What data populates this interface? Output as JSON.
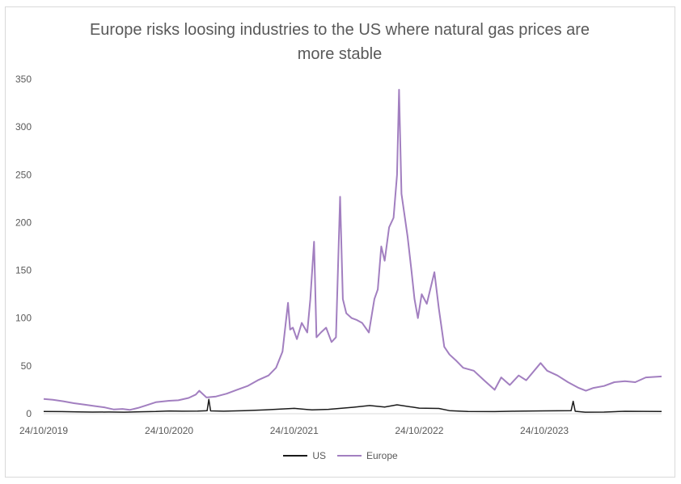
{
  "chart_data": {
    "type": "line",
    "title_line1": "Europe risks loosing industries to the US where natural gas prices are",
    "title_line2": "more stable",
    "x_tick_labels": [
      "24/10/2019",
      "24/10/2020",
      "24/10/2021",
      "24/10/2022",
      "24/10/2023"
    ],
    "x_ticks": [
      "2019-10-24",
      "2020-10-24",
      "2021-10-24",
      "2022-10-24",
      "2023-10-24"
    ],
    "xlim": [
      "2019-10-24",
      "2024-09-30"
    ],
    "ylim": [
      0,
      350
    ],
    "y_ticks": [
      0,
      50,
      100,
      150,
      200,
      250,
      300,
      350
    ],
    "grid": false,
    "legend_position": "bottom",
    "colors": {
      "US": "#1a1a1a",
      "Europe": "#a27fc0"
    },
    "series": [
      {
        "name": "US",
        "points": [
          [
            "2019-10-24",
            2.3
          ],
          [
            "2019-12-15",
            2.2
          ],
          [
            "2020-02-01",
            1.9
          ],
          [
            "2020-03-15",
            1.7
          ],
          [
            "2020-05-01",
            1.8
          ],
          [
            "2020-06-15",
            1.6
          ],
          [
            "2020-08-01",
            2.0
          ],
          [
            "2020-09-15",
            2.3
          ],
          [
            "2020-10-24",
            2.9
          ],
          [
            "2020-12-01",
            2.6
          ],
          [
            "2021-01-15",
            2.7
          ],
          [
            "2021-02-12",
            3.1
          ],
          [
            "2021-02-17",
            15.0
          ],
          [
            "2021-02-22",
            3.0
          ],
          [
            "2021-04-01",
            2.6
          ],
          [
            "2021-06-01",
            3.2
          ],
          [
            "2021-08-01",
            4.0
          ],
          [
            "2021-10-24",
            5.6
          ],
          [
            "2021-12-15",
            4.0
          ],
          [
            "2022-02-01",
            4.6
          ],
          [
            "2022-04-15",
            6.8
          ],
          [
            "2022-06-01",
            8.5
          ],
          [
            "2022-07-15",
            7.0
          ],
          [
            "2022-08-20",
            9.3
          ],
          [
            "2022-10-24",
            5.8
          ],
          [
            "2022-12-20",
            5.5
          ],
          [
            "2023-01-20",
            3.2
          ],
          [
            "2023-03-15",
            2.3
          ],
          [
            "2023-06-01",
            2.2
          ],
          [
            "2023-08-01",
            2.6
          ],
          [
            "2023-10-24",
            3.0
          ],
          [
            "2024-01-10",
            3.1
          ],
          [
            "2024-01-16",
            13.0
          ],
          [
            "2024-01-22",
            2.5
          ],
          [
            "2024-02-20",
            1.6
          ],
          [
            "2024-04-15",
            1.7
          ],
          [
            "2024-06-15",
            2.5
          ],
          [
            "2024-09-30",
            2.3
          ]
        ]
      },
      {
        "name": "Europe",
        "points": [
          [
            "2019-10-24",
            15.5
          ],
          [
            "2019-11-20",
            14.5
          ],
          [
            "2019-12-20",
            13.0
          ],
          [
            "2020-01-20",
            11.0
          ],
          [
            "2020-02-20",
            9.5
          ],
          [
            "2020-03-20",
            8.0
          ],
          [
            "2020-04-20",
            6.5
          ],
          [
            "2020-05-15",
            4.5
          ],
          [
            "2020-06-10",
            5.0
          ],
          [
            "2020-07-01",
            4.0
          ],
          [
            "2020-07-25",
            6.0
          ],
          [
            "2020-08-20",
            9.0
          ],
          [
            "2020-09-15",
            12.0
          ],
          [
            "2020-10-24",
            13.5
          ],
          [
            "2020-11-20",
            14.0
          ],
          [
            "2020-12-20",
            16.5
          ],
          [
            "2021-01-10",
            20.0
          ],
          [
            "2021-01-20",
            24.0
          ],
          [
            "2021-02-10",
            17.0
          ],
          [
            "2021-03-10",
            18.0
          ],
          [
            "2021-04-10",
            21.0
          ],
          [
            "2021-05-10",
            25.0
          ],
          [
            "2021-06-10",
            29.0
          ],
          [
            "2021-07-10",
            35.0
          ],
          [
            "2021-08-10",
            40.0
          ],
          [
            "2021-09-01",
            48.0
          ],
          [
            "2021-09-20",
            65.0
          ],
          [
            "2021-10-06",
            116.0
          ],
          [
            "2021-10-12",
            88.0
          ],
          [
            "2021-10-20",
            90.0
          ],
          [
            "2021-11-01",
            78.0
          ],
          [
            "2021-11-15",
            95.0
          ],
          [
            "2021-12-01",
            85.0
          ],
          [
            "2021-12-10",
            120.0
          ],
          [
            "2021-12-21",
            180.0
          ],
          [
            "2021-12-28",
            80.0
          ],
          [
            "2022-01-10",
            85.0
          ],
          [
            "2022-01-25",
            90.0
          ],
          [
            "2022-02-10",
            75.0
          ],
          [
            "2022-02-23",
            80.0
          ],
          [
            "2022-03-07",
            227.0
          ],
          [
            "2022-03-15",
            120.0
          ],
          [
            "2022-03-25",
            105.0
          ],
          [
            "2022-04-10",
            100.0
          ],
          [
            "2022-04-25",
            98.0
          ],
          [
            "2022-05-10",
            95.0
          ],
          [
            "2022-05-30",
            85.0
          ],
          [
            "2022-06-15",
            120.0
          ],
          [
            "2022-06-25",
            130.0
          ],
          [
            "2022-07-05",
            175.0
          ],
          [
            "2022-07-15",
            160.0
          ],
          [
            "2022-07-28",
            195.0
          ],
          [
            "2022-08-10",
            205.0
          ],
          [
            "2022-08-20",
            250.0
          ],
          [
            "2022-08-26",
            339.0
          ],
          [
            "2022-09-02",
            230.0
          ],
          [
            "2022-09-10",
            210.0
          ],
          [
            "2022-09-20",
            185.0
          ],
          [
            "2022-10-01",
            150.0
          ],
          [
            "2022-10-10",
            120.0
          ],
          [
            "2022-10-20",
            100.0
          ],
          [
            "2022-10-31",
            125.0
          ],
          [
            "2022-11-15",
            115.0
          ],
          [
            "2022-12-07",
            148.0
          ],
          [
            "2022-12-20",
            110.0
          ],
          [
            "2023-01-05",
            70.0
          ],
          [
            "2023-01-20",
            62.0
          ],
          [
            "2023-02-10",
            55.0
          ],
          [
            "2023-03-01",
            48.0
          ],
          [
            "2023-04-01",
            45.0
          ],
          [
            "2023-05-01",
            35.0
          ],
          [
            "2023-06-01",
            25.0
          ],
          [
            "2023-06-20",
            38.0
          ],
          [
            "2023-07-15",
            30.0
          ],
          [
            "2023-08-10",
            40.0
          ],
          [
            "2023-09-01",
            35.0
          ],
          [
            "2023-10-13",
            53.0
          ],
          [
            "2023-11-01",
            45.0
          ],
          [
            "2023-12-01",
            40.0
          ],
          [
            "2024-01-01",
            33.0
          ],
          [
            "2024-02-01",
            27.0
          ],
          [
            "2024-02-22",
            24.0
          ],
          [
            "2024-03-15",
            27.0
          ],
          [
            "2024-04-15",
            29.0
          ],
          [
            "2024-05-15",
            33.0
          ],
          [
            "2024-06-15",
            34.0
          ],
          [
            "2024-07-15",
            33.0
          ],
          [
            "2024-08-15",
            38.0
          ],
          [
            "2024-09-30",
            39.0
          ]
        ]
      }
    ]
  }
}
